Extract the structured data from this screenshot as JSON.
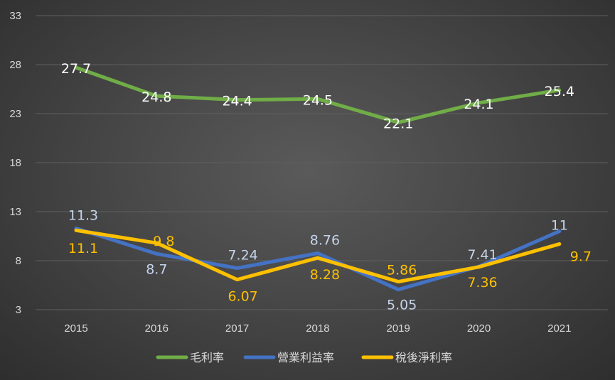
{
  "chart_data": {
    "type": "line",
    "title": "",
    "xlabel": "",
    "ylabel": "",
    "categories": [
      "2015",
      "2016",
      "2017",
      "2018",
      "2019",
      "2020",
      "2021"
    ],
    "y_ticks": [
      "3",
      "8",
      "13",
      "18",
      "23",
      "28",
      "33"
    ],
    "ylim": [
      3,
      33
    ],
    "grid": true,
    "legend_position": "bottom",
    "series": [
      {
        "name": "毛利率",
        "color": "#70ad47",
        "label_color": "#ffffff",
        "values": [
          27.7,
          24.8,
          24.4,
          24.5,
          22.1,
          24.1,
          25.4
        ],
        "labels": [
          "27.7",
          "24.8",
          "24.4",
          "24.5",
          "22.1",
          "24.1",
          "25.4"
        ]
      },
      {
        "name": "營業利益率",
        "color": "#4472c4",
        "label_color": "#c5d3ea",
        "values": [
          11.3,
          8.7,
          7.24,
          8.76,
          5.05,
          7.41,
          11
        ],
        "labels": [
          "11.3",
          "8.7",
          "7.24",
          "8.76",
          "5.05",
          "7.41",
          "11"
        ]
      },
      {
        "name": "稅後淨利率",
        "color": "#ffc000",
        "label_color": "#ffc000",
        "values": [
          11.1,
          9.8,
          6.07,
          8.28,
          5.86,
          7.36,
          9.7
        ],
        "labels": [
          "11.1",
          "9.8",
          "6.07",
          "8.28",
          "5.86",
          "7.36",
          "9.7"
        ]
      }
    ]
  }
}
